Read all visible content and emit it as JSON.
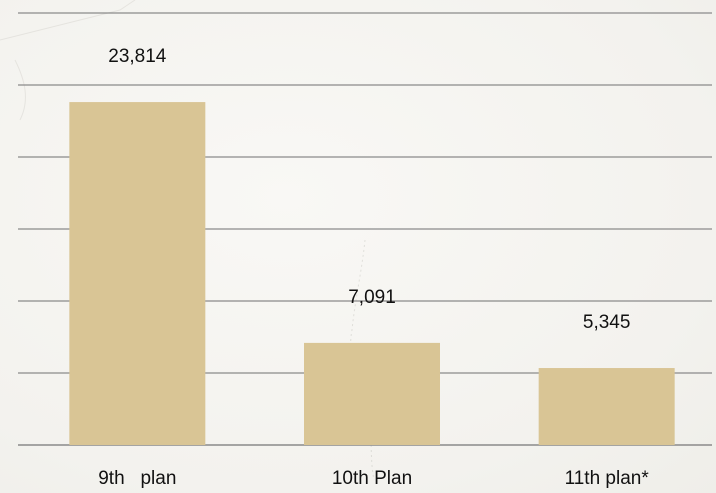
{
  "chart_data": {
    "type": "bar",
    "categories": [
      "9th   plan",
      "10th Plan",
      "11th plan*"
    ],
    "values": [
      23814,
      7091,
      5345
    ],
    "value_labels": [
      "23,814",
      "7,091",
      "5,345"
    ],
    "ylim": [
      0,
      30000
    ],
    "grid": true,
    "colors": {
      "bar": "#d9c595",
      "grid": "#8a8a8a",
      "text": "#111111"
    }
  }
}
